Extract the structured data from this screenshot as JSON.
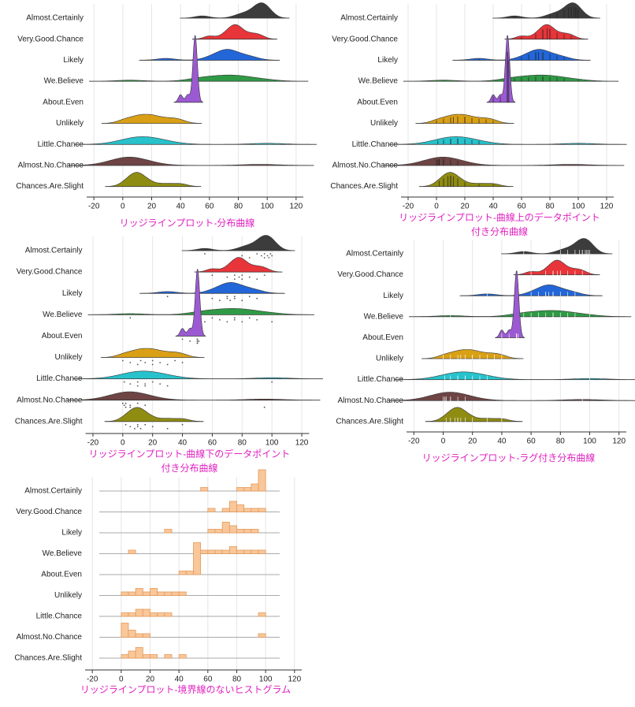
{
  "chart_data": [
    {
      "type": "ridgeline",
      "rug": "none",
      "caption": [
        "リッジラインプロット-分布曲線"
      ],
      "xlim": [
        -25,
        125
      ],
      "xticks": [
        -20,
        0,
        20,
        40,
        60,
        80,
        100,
        120
      ],
      "grid": true,
      "series": [
        {
          "name": "Almost.Certainly",
          "color": "#3c3c3c",
          "values": [
            55,
            80,
            85,
            90,
            93,
            95,
            95,
            97,
            98,
            99,
            100
          ]
        },
        {
          "name": "Very.Good.Chance",
          "color": "#e8353a",
          "values": [
            60,
            70,
            75,
            75,
            78,
            80,
            80,
            85,
            90,
            95
          ]
        },
        {
          "name": "Likely",
          "color": "#2266d8",
          "values": [
            30,
            60,
            65,
            70,
            70,
            72,
            75,
            75,
            80,
            85,
            90
          ]
        },
        {
          "name": "We.Believe",
          "color": "#2f9a45",
          "values": [
            5,
            50,
            55,
            60,
            65,
            70,
            75,
            75,
            80,
            85,
            90,
            100
          ]
        },
        {
          "name": "About.Even",
          "color": "#9b5ad2",
          "values": [
            40,
            45,
            50,
            50,
            50,
            50,
            50,
            50,
            50,
            50,
            51
          ]
        },
        {
          "name": "Unlikely",
          "color": "#d9a016",
          "values": [
            0,
            5,
            10,
            12,
            15,
            20,
            20,
            25,
            30,
            35,
            40
          ]
        },
        {
          "name": "Little.Chance",
          "color": "#27c2cc",
          "values": [
            1,
            5,
            10,
            10,
            15,
            15,
            20,
            25,
            30,
            100
          ]
        },
        {
          "name": "Almost.No.Chance",
          "color": "#6e4444",
          "values": [
            0,
            1,
            2,
            2,
            5,
            5,
            10,
            15,
            95
          ]
        },
        {
          "name": "Chances.Are.Slight",
          "color": "#8f8c12",
          "values": [
            2,
            5,
            8,
            10,
            10,
            12,
            15,
            20,
            30,
            40
          ]
        }
      ]
    },
    {
      "type": "ridgeline",
      "rug": "on-curve",
      "caption": [
        "リッジラインプロット-曲線上のデータポイント",
        "付き分布曲線"
      ],
      "xlim": [
        -25,
        125
      ],
      "xticks": [
        -20,
        0,
        20,
        40,
        60,
        80,
        100,
        120
      ],
      "grid": true,
      "series": [
        {
          "name": "Almost.Certainly",
          "color": "#3c3c3c",
          "values": [
            55,
            80,
            85,
            90,
            93,
            95,
            95,
            97,
            98,
            99,
            100
          ]
        },
        {
          "name": "Very.Good.Chance",
          "color": "#e8353a",
          "values": [
            60,
            70,
            75,
            75,
            78,
            80,
            80,
            85,
            90,
            95
          ]
        },
        {
          "name": "Likely",
          "color": "#2266d8",
          "values": [
            30,
            60,
            65,
            70,
            70,
            72,
            75,
            75,
            80,
            85,
            90
          ]
        },
        {
          "name": "We.Believe",
          "color": "#2f9a45",
          "values": [
            5,
            50,
            55,
            60,
            65,
            70,
            75,
            75,
            80,
            85,
            90,
            100
          ]
        },
        {
          "name": "About.Even",
          "color": "#9b5ad2",
          "values": [
            40,
            45,
            50,
            50,
            50,
            50,
            50,
            50,
            50,
            50,
            51
          ]
        },
        {
          "name": "Unlikely",
          "color": "#d9a016",
          "values": [
            0,
            5,
            10,
            12,
            15,
            20,
            20,
            25,
            30,
            35,
            40
          ]
        },
        {
          "name": "Little.Chance",
          "color": "#27c2cc",
          "values": [
            1,
            5,
            10,
            10,
            15,
            15,
            20,
            25,
            30,
            100
          ]
        },
        {
          "name": "Almost.No.Chance",
          "color": "#6e4444",
          "values": [
            0,
            1,
            2,
            2,
            5,
            5,
            10,
            15,
            95
          ]
        },
        {
          "name": "Chances.Are.Slight",
          "color": "#8f8c12",
          "values": [
            2,
            5,
            8,
            10,
            10,
            12,
            15,
            20,
            30,
            40
          ]
        }
      ]
    },
    {
      "type": "ridgeline",
      "rug": "below",
      "caption": [
        "リッジラインプロット-曲線下のデータポイント",
        "付き分布曲線"
      ],
      "xlim": [
        -25,
        125
      ],
      "xticks": [
        -20,
        0,
        20,
        40,
        60,
        80,
        100,
        120
      ],
      "grid": true,
      "series": [
        {
          "name": "Almost.Certainly",
          "color": "#3c3c3c",
          "values": [
            55,
            80,
            85,
            90,
            93,
            95,
            95,
            97,
            98,
            99,
            100
          ]
        },
        {
          "name": "Very.Good.Chance",
          "color": "#e8353a",
          "values": [
            60,
            70,
            75,
            75,
            78,
            80,
            80,
            85,
            90,
            95
          ]
        },
        {
          "name": "Likely",
          "color": "#2266d8",
          "values": [
            30,
            60,
            65,
            70,
            70,
            72,
            75,
            75,
            80,
            85,
            90
          ]
        },
        {
          "name": "We.Believe",
          "color": "#2f9a45",
          "values": [
            5,
            50,
            55,
            60,
            65,
            70,
            75,
            75,
            80,
            85,
            90,
            100
          ]
        },
        {
          "name": "About.Even",
          "color": "#9b5ad2",
          "values": [
            40,
            45,
            50,
            50,
            50,
            50,
            50,
            50,
            50,
            50,
            51
          ]
        },
        {
          "name": "Unlikely",
          "color": "#d9a016",
          "values": [
            0,
            5,
            10,
            12,
            15,
            20,
            20,
            25,
            30,
            35,
            40
          ]
        },
        {
          "name": "Little.Chance",
          "color": "#27c2cc",
          "values": [
            1,
            5,
            10,
            10,
            15,
            15,
            20,
            25,
            30,
            100
          ]
        },
        {
          "name": "Almost.No.Chance",
          "color": "#6e4444",
          "values": [
            0,
            1,
            2,
            2,
            5,
            5,
            10,
            15,
            95
          ]
        },
        {
          "name": "Chances.Are.Slight",
          "color": "#8f8c12",
          "values": [
            2,
            5,
            8,
            10,
            10,
            12,
            15,
            20,
            30,
            40
          ]
        }
      ]
    },
    {
      "type": "ridgeline",
      "rug": "ticks",
      "caption": [
        "リッジラインプロット-ラグ付き分布曲線"
      ],
      "xlim": [
        -25,
        125
      ],
      "xticks": [
        -20,
        0,
        20,
        40,
        60,
        80,
        100,
        120
      ],
      "grid": true,
      "series": [
        {
          "name": "Almost.Certainly",
          "color": "#3c3c3c",
          "values": [
            55,
            80,
            85,
            90,
            93,
            95,
            95,
            97,
            98,
            99,
            100
          ]
        },
        {
          "name": "Very.Good.Chance",
          "color": "#e8353a",
          "values": [
            60,
            70,
            75,
            75,
            78,
            80,
            80,
            85,
            90,
            95
          ]
        },
        {
          "name": "Likely",
          "color": "#2266d8",
          "values": [
            30,
            60,
            65,
            70,
            70,
            72,
            75,
            75,
            80,
            85,
            90
          ]
        },
        {
          "name": "We.Believe",
          "color": "#2f9a45",
          "values": [
            5,
            50,
            55,
            60,
            65,
            70,
            75,
            75,
            80,
            85,
            90,
            100
          ]
        },
        {
          "name": "About.Even",
          "color": "#9b5ad2",
          "values": [
            40,
            45,
            50,
            50,
            50,
            50,
            50,
            50,
            50,
            50,
            51
          ]
        },
        {
          "name": "Unlikely",
          "color": "#d9a016",
          "values": [
            0,
            5,
            10,
            12,
            15,
            20,
            20,
            25,
            30,
            35,
            40
          ]
        },
        {
          "name": "Little.Chance",
          "color": "#27c2cc",
          "values": [
            1,
            5,
            10,
            10,
            15,
            15,
            20,
            25,
            30,
            100
          ]
        },
        {
          "name": "Almost.No.Chance",
          "color": "#6e4444",
          "values": [
            0,
            1,
            2,
            2,
            5,
            5,
            10,
            15,
            95
          ]
        },
        {
          "name": "Chances.Are.Slight",
          "color": "#8f8c12",
          "values": [
            2,
            5,
            8,
            10,
            10,
            12,
            15,
            20,
            30,
            40
          ]
        }
      ]
    },
    {
      "type": "ridge-histogram",
      "caption": [
        "リッジラインプロット-境界線のないヒストグラム"
      ],
      "xlim": [
        -25,
        125
      ],
      "xticks": [
        -20,
        0,
        20,
        40,
        60,
        80,
        100,
        120
      ],
      "grid": true,
      "color": "#f9c79a",
      "edgecolor": "#e39a5a",
      "bins": [
        0,
        5,
        10,
        15,
        20,
        25,
        30,
        35,
        40,
        45,
        50,
        55,
        60,
        65,
        70,
        75,
        80,
        85,
        90,
        95,
        100
      ],
      "series": [
        {
          "name": "Almost.Certainly",
          "values": [
            55,
            80,
            85,
            90,
            93,
            95,
            95,
            97,
            98,
            99,
            100
          ]
        },
        {
          "name": "Very.Good.Chance",
          "values": [
            60,
            70,
            75,
            75,
            78,
            80,
            80,
            85,
            90,
            95
          ]
        },
        {
          "name": "Likely",
          "values": [
            30,
            60,
            65,
            70,
            70,
            72,
            75,
            75,
            80,
            85,
            90
          ]
        },
        {
          "name": "We.Believe",
          "values": [
            5,
            50,
            55,
            60,
            65,
            70,
            75,
            75,
            80,
            85,
            90,
            100
          ]
        },
        {
          "name": "About.Even",
          "values": [
            40,
            45,
            50,
            50,
            50,
            50,
            50,
            50,
            50,
            50,
            51
          ]
        },
        {
          "name": "Unlikely",
          "values": [
            0,
            5,
            10,
            12,
            15,
            20,
            20,
            25,
            30,
            35,
            40
          ]
        },
        {
          "name": "Little.Chance",
          "values": [
            1,
            5,
            10,
            10,
            15,
            15,
            20,
            25,
            30,
            100
          ]
        },
        {
          "name": "Almost.No.Chance",
          "values": [
            0,
            1,
            2,
            2,
            5,
            5,
            10,
            15,
            95
          ]
        },
        {
          "name": "Chances.Are.Slight",
          "values": [
            2,
            5,
            8,
            10,
            10,
            12,
            15,
            20,
            30,
            40
          ]
        }
      ]
    }
  ]
}
